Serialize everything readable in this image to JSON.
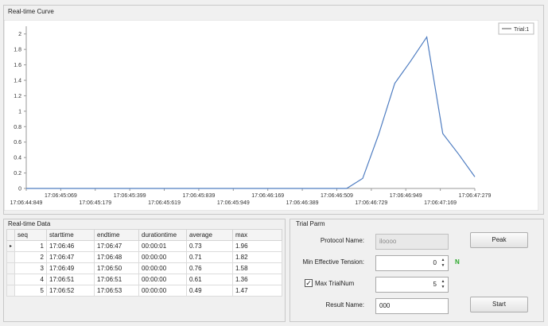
{
  "curve": {
    "title": "Real-time Curve",
    "legend": "Trial:1",
    "line_color": "#4f7dc1"
  },
  "chart_data": {
    "type": "line",
    "title": "",
    "xlabel": "",
    "ylabel": "",
    "ylim": [
      0,
      2.1
    ],
    "yticks": [
      "0",
      "0.2",
      "0.4",
      "0.6",
      "0.8",
      "1",
      "1.2",
      "1.4",
      "1.6",
      "1.8",
      "2"
    ],
    "xticks_top": [
      "17:06:45:069",
      "17:06:45:399",
      "17:06:45:839",
      "17:06:46:169",
      "17:06:46:509",
      "17:06:46:949",
      "17:06:47:279"
    ],
    "xticks_bottom": [
      "17:06:44:849",
      "17:06:45:179",
      "17:06:45:619",
      "17:06:45:949",
      "17:06:46:389",
      "17:06:46:729",
      "17:06:47:169"
    ],
    "series": [
      {
        "name": "Trial:1",
        "x": [
          0,
          0.5,
          1,
          1.5,
          2,
          2.5,
          3,
          3.5,
          4,
          4.5,
          5,
          5.5,
          6,
          6.5,
          7,
          7.5,
          8,
          8.5,
          9,
          9.5,
          10,
          10.5,
          11,
          11.5,
          12,
          12.5,
          13,
          13.5,
          14
        ],
        "values": [
          0,
          0,
          0,
          0,
          0,
          0,
          0,
          0,
          0,
          0,
          0,
          0,
          0,
          0,
          0,
          0,
          0,
          0,
          0,
          0,
          0,
          0.13,
          0.7,
          1.36,
          1.65,
          1.96,
          0.71,
          0.44,
          0.15
        ]
      }
    ]
  },
  "data_panel": {
    "title": "Real-time Data",
    "columns": [
      "seq",
      "starttime",
      "endtime",
      "durationtime",
      "average",
      "max"
    ],
    "rows": [
      {
        "seq": "1",
        "starttime": "17:06:46",
        "endtime": "17:06:47",
        "durationtime": "00:00:01",
        "average": "0.73",
        "max": "1.96"
      },
      {
        "seq": "2",
        "starttime": "17:06:47",
        "endtime": "17:06:48",
        "durationtime": "00:00:00",
        "average": "0.71",
        "max": "1.82"
      },
      {
        "seq": "3",
        "starttime": "17:06:49",
        "endtime": "17:06:50",
        "durationtime": "00:00:00",
        "average": "0.76",
        "max": "1.58"
      },
      {
        "seq": "4",
        "starttime": "17:06:51",
        "endtime": "17:06:51",
        "durationtime": "00:00:00",
        "average": "0.61",
        "max": "1.36"
      },
      {
        "seq": "5",
        "starttime": "17:06:52",
        "endtime": "17:06:53",
        "durationtime": "00:00:00",
        "average": "0.49",
        "max": "1.47"
      }
    ],
    "current_row_marker": "▸"
  },
  "trial": {
    "title": "Trial Parm",
    "protocol_label": "Protocol Name:",
    "protocol_value": "iloooo",
    "tension_label": "Min Effective Tension:",
    "tension_value": "0",
    "tension_unit": "N",
    "tension_unit_color": "#2aa82a",
    "trialnum_label": "Max TrialNum",
    "trialnum_checked": "✓",
    "trialnum_value": "5",
    "result_label": "Result Name:",
    "result_value": "000",
    "peak_button": "Peak",
    "start_button": "Start"
  }
}
